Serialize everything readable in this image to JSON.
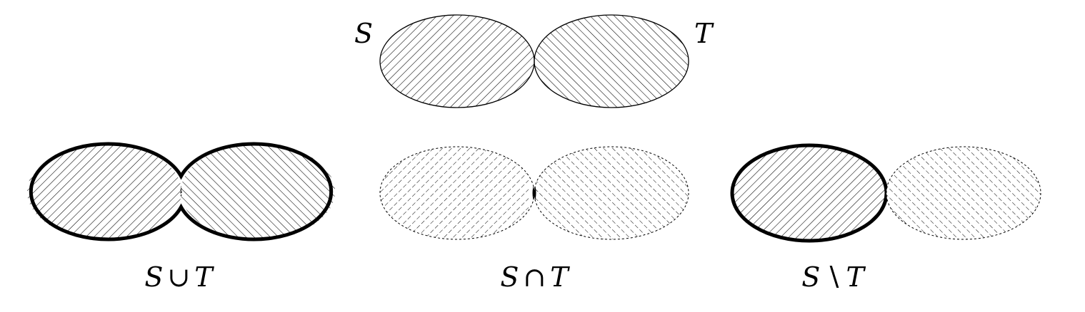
{
  "top_diagram": {
    "left_set_label": "S",
    "right_set_label": "T"
  },
  "operations": [
    {
      "id": "union",
      "caption_left": "S",
      "caption_op": "∪",
      "caption_right": "T"
    },
    {
      "id": "intersection",
      "caption_left": "S",
      "caption_op": "∩",
      "caption_right": "T"
    },
    {
      "id": "difference",
      "caption_left": "S",
      "caption_op": "∖",
      "caption_right": "T"
    }
  ],
  "colors": {
    "ink": "#000000",
    "background": "#ffffff"
  }
}
